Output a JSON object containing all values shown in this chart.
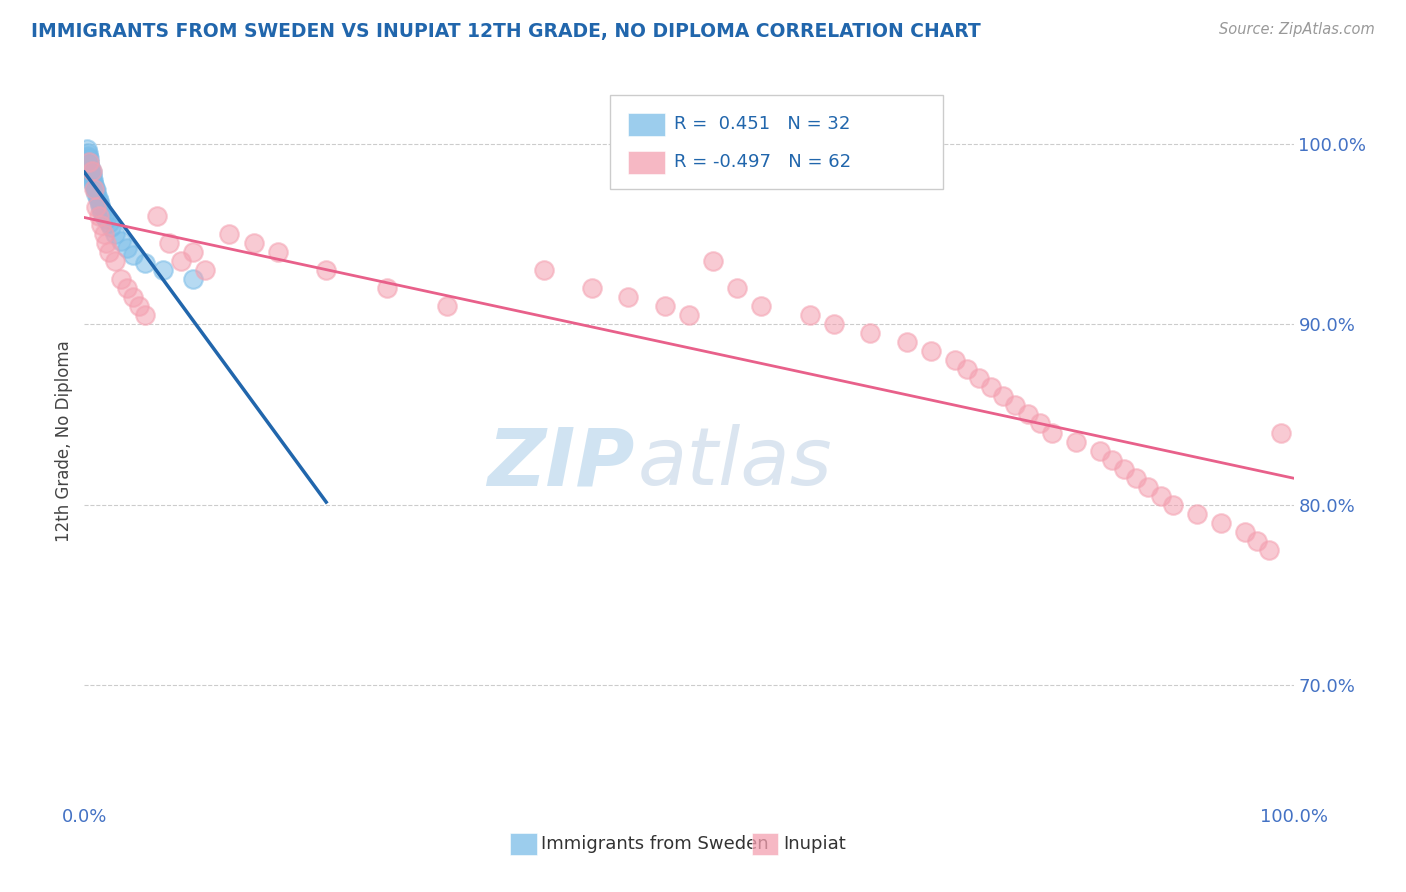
{
  "title": "IMMIGRANTS FROM SWEDEN VS INUPIAT 12TH GRADE, NO DIPLOMA CORRELATION CHART",
  "source": "Source: ZipAtlas.com",
  "ylabel": "12th Grade, No Diploma",
  "legend_r1_val": "0.451",
  "legend_n1_val": "32",
  "legend_r2_val": "-0.497",
  "legend_n2_val": "62",
  "legend_label1": "Immigrants from Sweden",
  "legend_label2": "Inupiat",
  "blue_color": "#7bbde8",
  "pink_color": "#f4a0b0",
  "blue_line_color": "#2166ac",
  "pink_line_color": "#e8608a",
  "title_color": "#2166ac",
  "source_color": "#999999",
  "tick_color": "#4472c4",
  "xlim": [
    0.0,
    1.0
  ],
  "ylim": [
    0.635,
    1.035
  ],
  "ytick_vals": [
    0.7,
    0.8,
    0.9,
    1.0
  ],
  "blue_x": [
    0.002,
    0.003,
    0.003,
    0.004,
    0.004,
    0.004,
    0.005,
    0.005,
    0.006,
    0.006,
    0.007,
    0.007,
    0.008,
    0.009,
    0.01,
    0.01,
    0.011,
    0.012,
    0.013,
    0.014,
    0.015,
    0.016,
    0.018,
    0.02,
    0.022,
    0.025,
    0.03,
    0.035,
    0.04,
    0.05,
    0.065,
    0.09
  ],
  "blue_y": [
    0.997,
    0.995,
    0.993,
    0.992,
    0.99,
    0.988,
    0.987,
    0.985,
    0.984,
    0.982,
    0.98,
    0.978,
    0.977,
    0.975,
    0.974,
    0.972,
    0.97,
    0.968,
    0.966,
    0.964,
    0.962,
    0.96,
    0.958,
    0.956,
    0.954,
    0.95,
    0.946,
    0.942,
    0.938,
    0.934,
    0.93,
    0.925
  ],
  "pink_x": [
    0.004,
    0.006,
    0.008,
    0.01,
    0.012,
    0.014,
    0.016,
    0.018,
    0.02,
    0.025,
    0.03,
    0.035,
    0.04,
    0.045,
    0.05,
    0.06,
    0.07,
    0.08,
    0.09,
    0.1,
    0.12,
    0.14,
    0.16,
    0.2,
    0.25,
    0.3,
    0.38,
    0.42,
    0.45,
    0.48,
    0.5,
    0.52,
    0.54,
    0.56,
    0.6,
    0.62,
    0.65,
    0.68,
    0.7,
    0.72,
    0.73,
    0.74,
    0.75,
    0.76,
    0.77,
    0.78,
    0.79,
    0.8,
    0.82,
    0.84,
    0.85,
    0.86,
    0.87,
    0.88,
    0.89,
    0.9,
    0.92,
    0.94,
    0.96,
    0.97,
    0.98,
    0.99
  ],
  "pink_y": [
    0.99,
    0.985,
    0.975,
    0.965,
    0.96,
    0.955,
    0.95,
    0.945,
    0.94,
    0.935,
    0.925,
    0.92,
    0.915,
    0.91,
    0.905,
    0.96,
    0.945,
    0.935,
    0.94,
    0.93,
    0.95,
    0.945,
    0.94,
    0.93,
    0.92,
    0.91,
    0.93,
    0.92,
    0.915,
    0.91,
    0.905,
    0.935,
    0.92,
    0.91,
    0.905,
    0.9,
    0.895,
    0.89,
    0.885,
    0.88,
    0.875,
    0.87,
    0.865,
    0.86,
    0.855,
    0.85,
    0.845,
    0.84,
    0.835,
    0.83,
    0.825,
    0.82,
    0.815,
    0.81,
    0.805,
    0.8,
    0.795,
    0.79,
    0.785,
    0.78,
    0.775,
    0.84
  ]
}
